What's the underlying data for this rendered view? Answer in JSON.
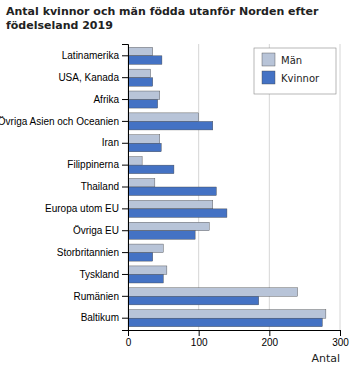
{
  "chart_data": {
    "type": "bar",
    "orientation": "horizontal",
    "title": "Antal kvinnor och män födda utanför Norden efter\nfödelseland 2019",
    "categories": [
      "Baltikum",
      "Rumänien",
      "Tyskland",
      "Storbritannien",
      "Övriga EU",
      "Europa utom EU",
      "Thailand",
      "Filippinerna",
      "Iran",
      "Övriga Asien och Oceanien",
      "Afrika",
      "USA, Kanada",
      "Latinamerika"
    ],
    "series": [
      {
        "name": "Män",
        "color": "#b8c4d8",
        "values": [
          280,
          240,
          55,
          50,
          115,
          120,
          38,
          20,
          45,
          100,
          45,
          32,
          35
        ]
      },
      {
        "name": "Kvinnor",
        "color": "#4472c4",
        "values": [
          275,
          185,
          50,
          35,
          95,
          140,
          125,
          65,
          47,
          120,
          42,
          35,
          48
        ]
      }
    ],
    "xlabel": "Antal",
    "xlim": [
      0,
      300
    ],
    "xticks": [
      0,
      100,
      200,
      300
    ],
    "grid": true,
    "legend": "upper right"
  }
}
